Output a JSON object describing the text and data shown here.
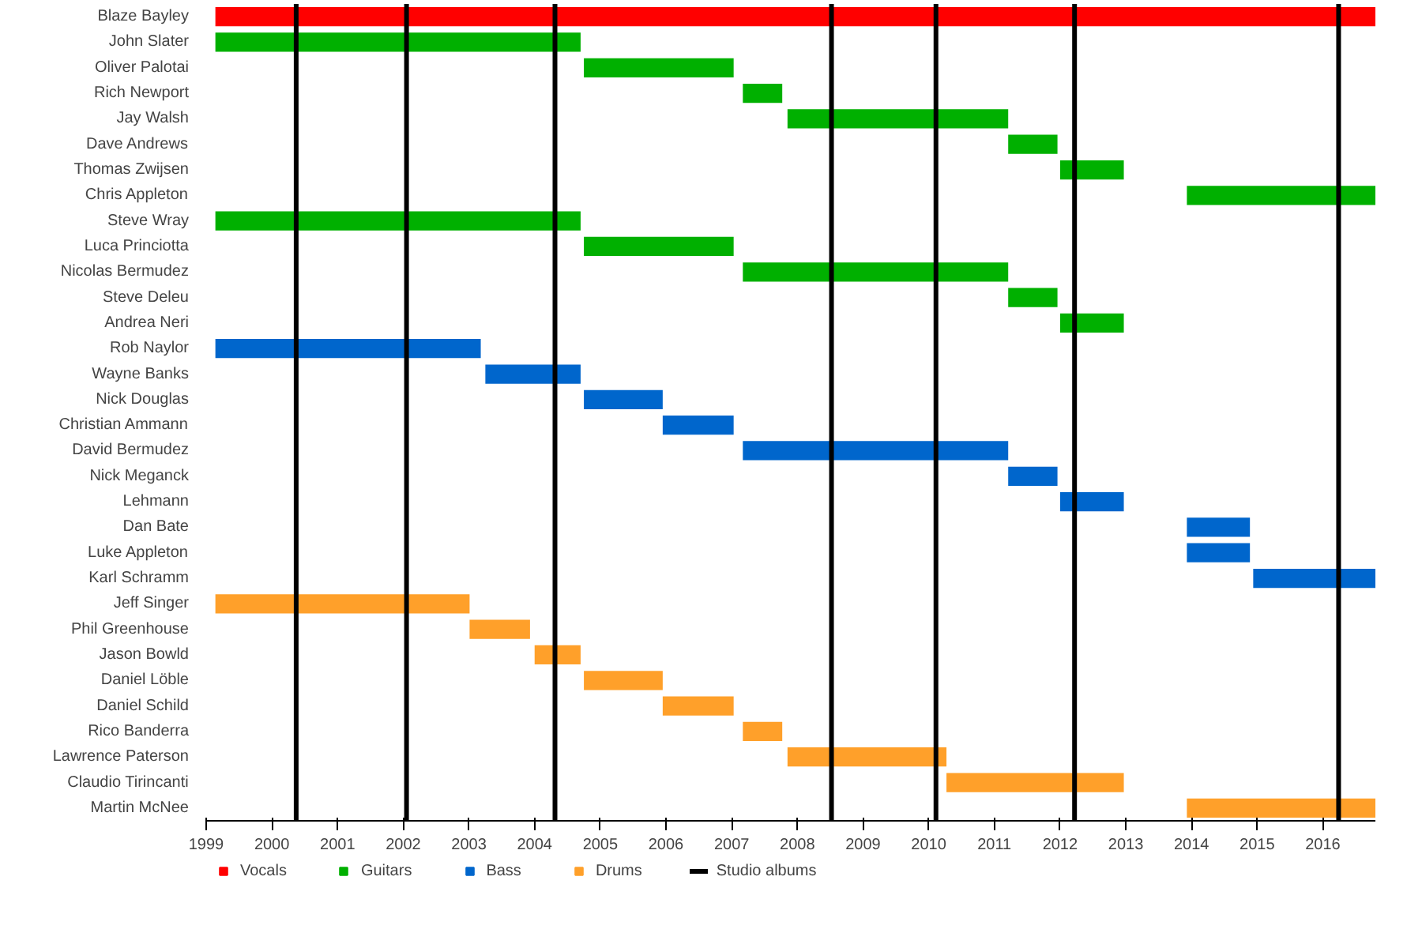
{
  "chart_data": {
    "type": "bar",
    "orientation": "horizontal",
    "legend": "bottom",
    "grid": false,
    "categories": [
      "Blaze Bayley",
      "John Slater",
      "Oliver Palotai",
      "Rich Newport",
      "Jay Walsh",
      "Dave Andrews",
      "Thomas Zwijsen",
      "Chris Appleton",
      "Steve Wray",
      "Luca Princiotta",
      "Nicolas Bermudez",
      "Steve Deleu",
      "Andrea Neri",
      "Rob Naylor",
      "Wayne Banks",
      "Nick Douglas",
      "Christian Ammann",
      "David Bermudez",
      "Nick Meganck",
      "Lehmann",
      "Dan Bate",
      "Luke Appleton",
      "Karl Schramm",
      "Jeff Singer",
      "Phil Greenhouse",
      "Jason Bowld",
      "Daniel Löble",
      "Daniel Schild",
      "Rico Banderra",
      "Lawrence Paterson",
      "Claudio Tirincanti",
      "Martin McNee"
    ],
    "xlim": [
      1999,
      2016.8
    ],
    "xticks": [
      1999,
      2000,
      2001,
      2002,
      2003,
      2004,
      2005,
      2006,
      2007,
      2008,
      2009,
      2010,
      2011,
      2012,
      2013,
      2014,
      2015,
      2016
    ],
    "series": [
      {
        "name": "Vocals",
        "color": "#ff0000",
        "base": [
          1999.14,
          null,
          null,
          null,
          null,
          null,
          null,
          null,
          null,
          null,
          null,
          null,
          null,
          null,
          null,
          null,
          null,
          null,
          null,
          null,
          null,
          null,
          null,
          null,
          null,
          null,
          null,
          null,
          null,
          null,
          null,
          null
        ],
        "values": [
          17.66,
          null,
          null,
          null,
          null,
          null,
          null,
          null,
          null,
          null,
          null,
          null,
          null,
          null,
          null,
          null,
          null,
          null,
          null,
          null,
          null,
          null,
          null,
          null,
          null,
          null,
          null,
          null,
          null,
          null,
          null,
          null
        ]
      },
      {
        "name": "Guitars",
        "color": "#00b000",
        "base": [
          null,
          1999.14,
          2004.75,
          2007.17,
          2007.85,
          2011.21,
          2012.0,
          2013.93,
          1999.14,
          2004.75,
          2007.17,
          2011.21,
          2012.0,
          null,
          null,
          null,
          null,
          null,
          null,
          null,
          null,
          null,
          null,
          null,
          null,
          null,
          null,
          null,
          null,
          null,
          null,
          null
        ],
        "values": [
          null,
          5.56,
          2.28,
          0.6,
          3.36,
          0.75,
          0.97,
          2.87,
          5.56,
          2.28,
          4.04,
          0.75,
          0.97,
          null,
          null,
          null,
          null,
          null,
          null,
          null,
          null,
          null,
          null,
          null,
          null,
          null,
          null,
          null,
          null,
          null,
          null,
          null
        ]
      },
      {
        "name": "Bass",
        "color": "#0066cc",
        "base": [
          null,
          null,
          null,
          null,
          null,
          null,
          null,
          null,
          null,
          null,
          null,
          null,
          null,
          1999.14,
          2003.25,
          2004.75,
          2005.95,
          2007.17,
          2011.21,
          2012.0,
          2013.93,
          2013.93,
          2014.94,
          null,
          null,
          null,
          null,
          null,
          null,
          null,
          null,
          null
        ],
        "values": [
          null,
          null,
          null,
          null,
          null,
          null,
          null,
          null,
          null,
          null,
          null,
          null,
          null,
          4.04,
          1.45,
          1.2,
          1.08,
          4.04,
          0.75,
          0.97,
          0.96,
          0.96,
          1.86,
          null,
          null,
          null,
          null,
          null,
          null,
          null,
          null,
          null
        ]
      },
      {
        "name": "Drums",
        "color": "#ffa02a",
        "base": [
          null,
          null,
          null,
          null,
          null,
          null,
          null,
          null,
          null,
          null,
          null,
          null,
          null,
          null,
          null,
          null,
          null,
          null,
          null,
          null,
          null,
          null,
          null,
          1999.14,
          2003.01,
          2004.0,
          2004.75,
          2005.95,
          2007.17,
          2007.85,
          2010.27,
          2013.93
        ],
        "values": [
          null,
          null,
          null,
          null,
          null,
          null,
          null,
          null,
          null,
          null,
          null,
          null,
          null,
          null,
          null,
          null,
          null,
          null,
          null,
          null,
          null,
          null,
          null,
          3.87,
          0.92,
          0.7,
          1.2,
          1.08,
          0.6,
          2.42,
          2.7,
          2.87
        ]
      }
    ],
    "ref_lines": [
      {
        "axis": "x",
        "value": 2000.37,
        "label": "Studio albums",
        "color": "#000000"
      },
      {
        "axis": "x",
        "value": 2002.05,
        "color": "#000000"
      },
      {
        "axis": "x",
        "value": 2004.31,
        "color": "#000000"
      },
      {
        "axis": "x",
        "value": 2008.52,
        "color": "#000000"
      },
      {
        "axis": "x",
        "value": 2010.11,
        "color": "#000000"
      },
      {
        "axis": "x",
        "value": 2012.22,
        "color": "#000000"
      },
      {
        "axis": "x",
        "value": 2016.24,
        "color": "#000000"
      }
    ]
  }
}
